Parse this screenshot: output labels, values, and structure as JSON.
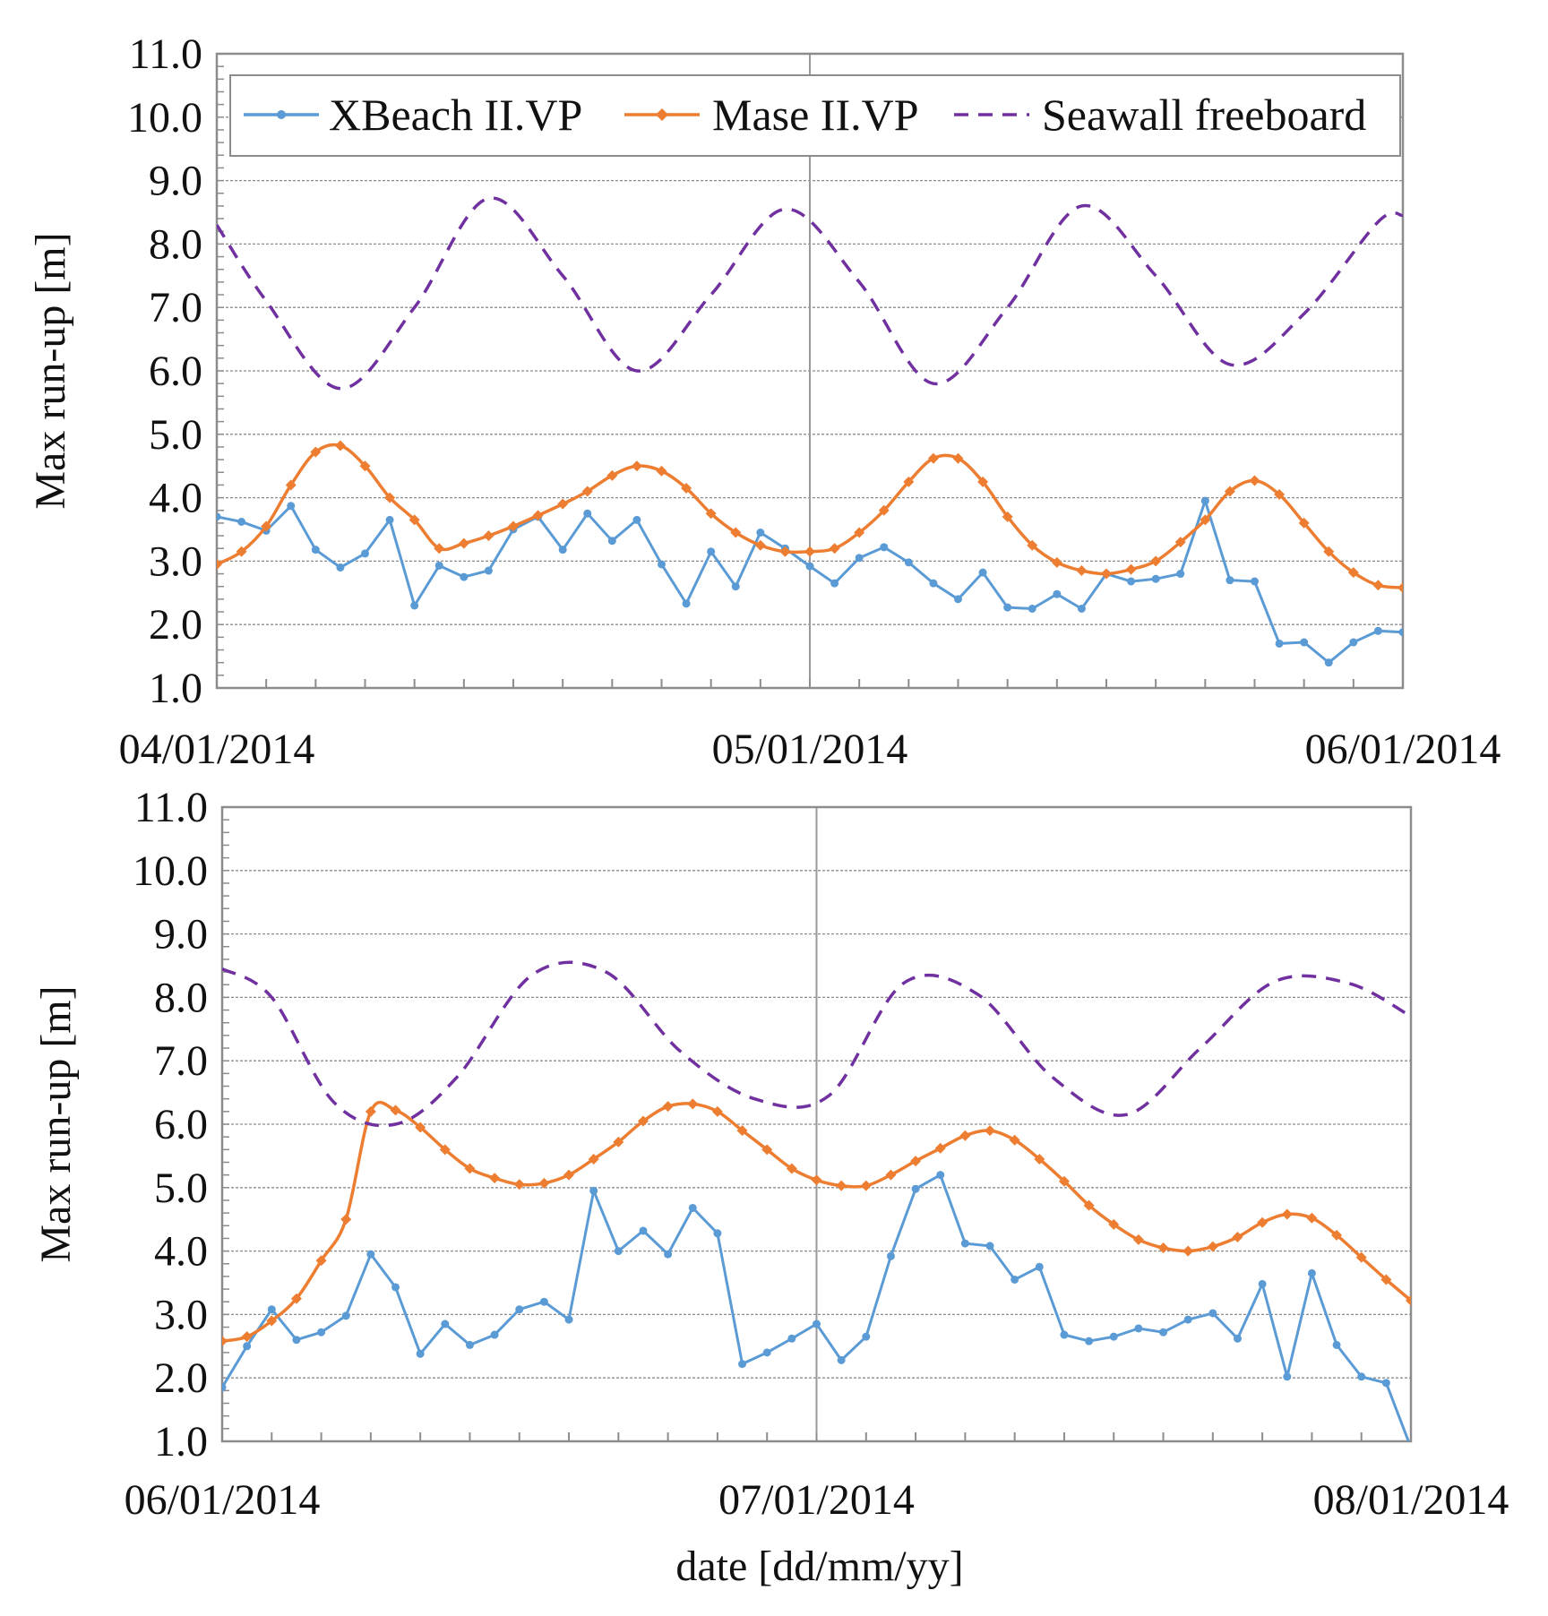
{
  "chart_data": [
    {
      "type": "line",
      "title": "",
      "xlabel": "",
      "ylabel": "Max run-up [m]",
      "ylim": [
        1.0,
        11.0
      ],
      "yticks": [
        "1.0",
        "2.0",
        "3.0",
        "4.0",
        "5.0",
        "6.0",
        "7.0",
        "8.0",
        "9.0",
        "10.0",
        "11.0"
      ],
      "x_unit": "hours",
      "xlim": [
        0,
        48
      ],
      "date_labels": [
        "04/01/2014",
        "05/01/2014",
        "06/01/2014"
      ],
      "grid": true,
      "legend_position": "top",
      "legend": [
        "XBeach II.VP",
        "Mase II.VP",
        "Seawall freeboard"
      ],
      "series": [
        {
          "name": "XBeach II.VP",
          "color": "#5b9bd5",
          "marker": "circle",
          "values": [
            3.7,
            3.62,
            3.48,
            3.87,
            3.18,
            2.9,
            3.12,
            3.65,
            2.3,
            2.93,
            2.75,
            2.85,
            3.5,
            3.7,
            3.18,
            3.75,
            3.32,
            3.65,
            2.95,
            2.33,
            3.15,
            2.6,
            3.45,
            3.2,
            2.92,
            2.65,
            3.05,
            3.22,
            2.98,
            2.65,
            2.4,
            2.82,
            2.27,
            2.25,
            2.48,
            2.25,
            2.8,
            2.68,
            2.72,
            2.8,
            3.95,
            2.7,
            2.68,
            1.7,
            1.72,
            1.4,
            1.72,
            1.9,
            1.88
          ]
        },
        {
          "name": "Mase II.VP",
          "color": "#ed7d31",
          "marker": "diamond",
          "values": [
            2.95,
            3.15,
            3.55,
            4.2,
            4.72,
            4.82,
            4.5,
            4.0,
            3.65,
            3.2,
            3.28,
            3.4,
            3.55,
            3.72,
            3.9,
            4.1,
            4.35,
            4.5,
            4.42,
            4.15,
            3.75,
            3.45,
            3.25,
            3.15,
            3.15,
            3.2,
            3.45,
            3.8,
            4.25,
            4.62,
            4.62,
            4.25,
            3.7,
            3.25,
            2.98,
            2.85,
            2.8,
            2.87,
            3.0,
            3.3,
            3.65,
            4.1,
            4.27,
            4.05,
            3.6,
            3.15,
            2.82,
            2.62,
            2.58
          ]
        },
        {
          "name": "Seawall freeboard",
          "color": "#7030a0",
          "dash": "dashed",
          "x": [
            0,
            2,
            5,
            8,
            11,
            14,
            17,
            20,
            23,
            26,
            29,
            32,
            35,
            38,
            41,
            44,
            47,
            48
          ],
          "values": [
            8.3,
            7.1,
            5.72,
            7.0,
            8.72,
            7.5,
            6.0,
            7.2,
            8.55,
            7.4,
            5.8,
            7.0,
            8.6,
            7.5,
            6.1,
            6.9,
            8.35,
            8.45
          ]
        }
      ]
    },
    {
      "type": "line",
      "title": "",
      "xlabel": "date [dd/mm/yy]",
      "ylabel": "Max run-up [m]",
      "ylim": [
        1.0,
        11.0
      ],
      "yticks": [
        "1.0",
        "2.0",
        "3.0",
        "4.0",
        "5.0",
        "6.0",
        "7.0",
        "8.0",
        "9.0",
        "10.0",
        "11.0"
      ],
      "x_unit": "hours",
      "xlim": [
        0,
        48
      ],
      "date_labels": [
        "06/01/2014",
        "07/01/2014",
        "08/01/2014"
      ],
      "grid": true,
      "series": [
        {
          "name": "XBeach II.VP",
          "color": "#5b9bd5",
          "marker": "circle",
          "values": [
            1.85,
            2.5,
            3.08,
            2.6,
            2.72,
            2.98,
            3.95,
            3.43,
            2.38,
            2.85,
            2.52,
            2.68,
            3.08,
            3.2,
            2.92,
            4.95,
            4.0,
            4.32,
            3.95,
            4.68,
            4.28,
            2.22,
            2.4,
            2.62,
            2.85,
            2.28,
            2.65,
            3.92,
            4.98,
            5.2,
            4.12,
            4.08,
            3.55,
            3.75,
            2.68,
            2.58,
            2.65,
            2.78,
            2.72,
            2.92,
            3.02,
            2.62,
            3.48,
            2.02,
            3.65,
            2.52,
            2.02,
            1.92,
            0.9
          ]
        },
        {
          "name": "Mase II.VP",
          "color": "#ed7d31",
          "marker": "diamond",
          "values": [
            2.58,
            2.65,
            2.9,
            3.25,
            3.85,
            4.5,
            6.2,
            6.22,
            5.95,
            5.6,
            5.3,
            5.15,
            5.05,
            5.07,
            5.2,
            5.45,
            5.72,
            6.05,
            6.28,
            6.32,
            6.2,
            5.9,
            5.6,
            5.3,
            5.12,
            5.03,
            5.03,
            5.2,
            5.42,
            5.62,
            5.82,
            5.9,
            5.75,
            5.45,
            5.1,
            4.72,
            4.42,
            4.18,
            4.05,
            4.0,
            4.07,
            4.22,
            4.45,
            4.58,
            4.52,
            4.25,
            3.9,
            3.55,
            3.22
          ]
        },
        {
          "name": "Seawall freeboard",
          "color": "#7030a0",
          "dash": "dashed",
          "x": [
            0,
            2,
            4.5,
            7,
            9.5,
            12.5,
            15.5,
            18.5,
            21.5,
            24.5,
            27.5,
            30.5,
            33.5,
            36.5,
            39.5,
            42.5,
            45.5,
            48
          ],
          "values": [
            8.45,
            8.0,
            6.35,
            6.0,
            6.75,
            8.35,
            8.4,
            7.15,
            6.4,
            6.45,
            8.22,
            8.05,
            6.75,
            6.15,
            7.2,
            8.25,
            8.22,
            7.7
          ]
        }
      ]
    }
  ]
}
